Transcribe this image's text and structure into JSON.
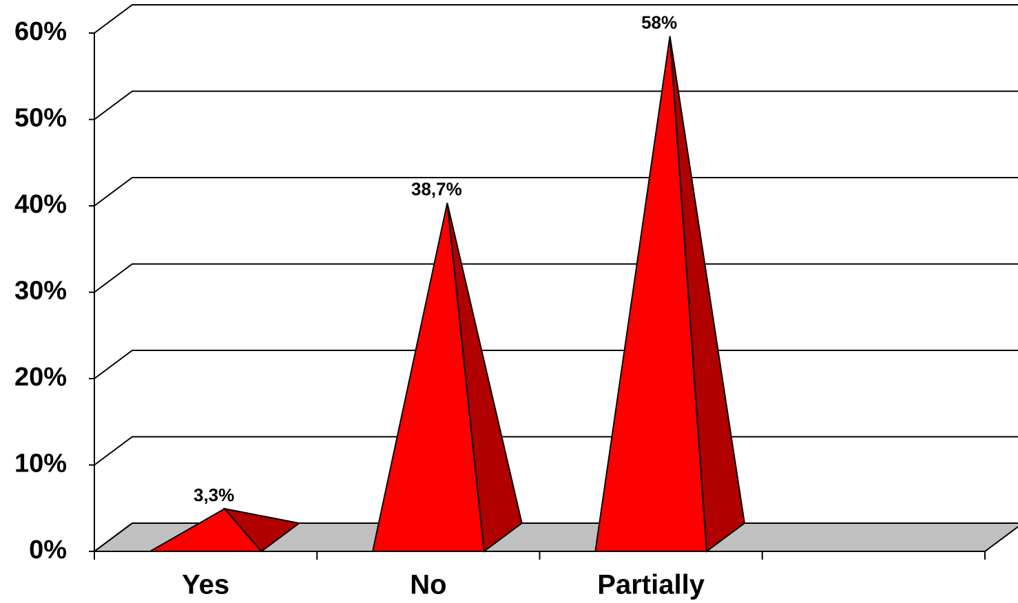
{
  "chart_data": {
    "type": "pyramid3d",
    "categories": [
      "Yes",
      "No",
      "Partially",
      null
    ],
    "values": [
      3.3,
      38.7,
      58,
      null
    ],
    "value_labels": [
      "3,3%",
      "38,7%",
      "58%",
      null
    ],
    "color": "#ff0000",
    "ylim": [
      0,
      60
    ],
    "yticks": [
      {
        "value": 0,
        "label": "0%"
      },
      {
        "value": 10,
        "label": "10%"
      },
      {
        "value": 20,
        "label": "20%"
      },
      {
        "value": 30,
        "label": "30%"
      },
      {
        "value": 40,
        "label": "40%"
      },
      {
        "value": 50,
        "label": "50%"
      },
      {
        "value": 60,
        "label": "60%"
      }
    ],
    "grid": true
  }
}
